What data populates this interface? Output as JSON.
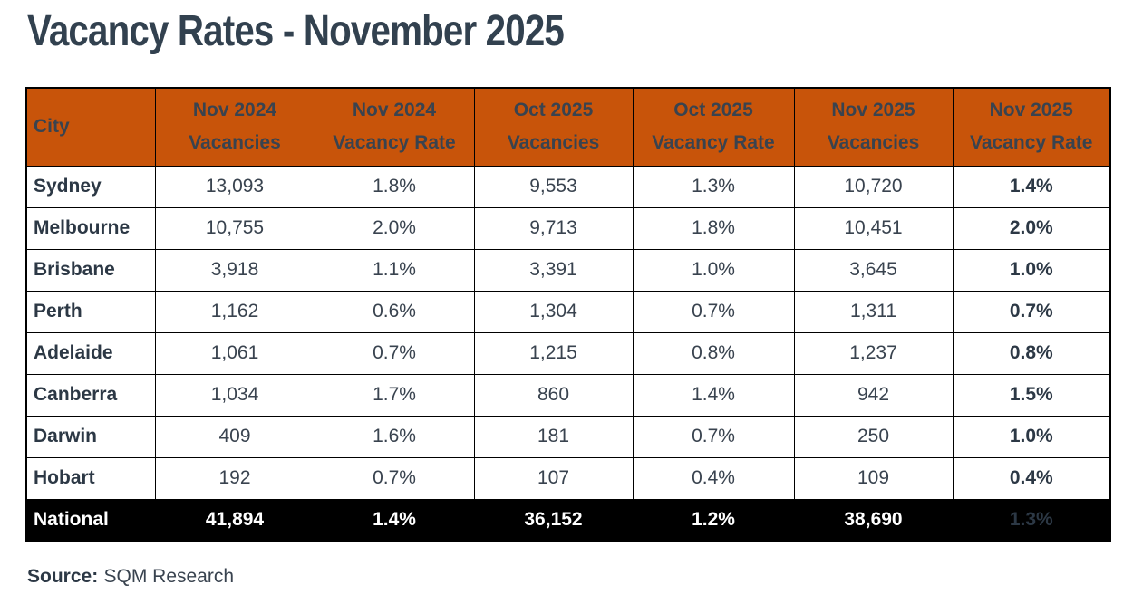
{
  "colors": {
    "header_bg": "#C8540A",
    "header_text": "#FFFFFF",
    "total_row_bg": "#000000",
    "total_row_text": "#FFFFFF",
    "body_text": "#39434F",
    "city_text": "#2C3845",
    "title_text": "#32414F",
    "border": "#000000"
  },
  "page": {
    "title": "Vacancy Rates - November 2025",
    "source_label": "Source:",
    "source_value": "SQM Research"
  },
  "table": {
    "columns": [
      {
        "line1": "City",
        "line2": ""
      },
      {
        "line1": "Nov 2024",
        "line2": "Vacancies"
      },
      {
        "line1": "Nov 2024",
        "line2": "Vacancy Rate"
      },
      {
        "line1": "Oct 2025",
        "line2": "Vacancies"
      },
      {
        "line1": "Oct 2025",
        "line2": "Vacancy Rate"
      },
      {
        "line1": "Nov 2025",
        "line2": "Vacancies"
      },
      {
        "line1": "Nov 2025",
        "line2": "Vacancy Rate"
      }
    ],
    "rows": [
      {
        "city": "Sydney",
        "values": [
          "13,093",
          "1.8%",
          "9,553",
          "1.3%",
          "10,720",
          "1.4%"
        ],
        "is_total": false
      },
      {
        "city": "Melbourne",
        "values": [
          "10,755",
          "2.0%",
          "9,713",
          "1.8%",
          "10,451",
          "2.0%"
        ],
        "is_total": false
      },
      {
        "city": "Brisbane",
        "values": [
          "3,918",
          "1.1%",
          "3,391",
          "1.0%",
          "3,645",
          "1.0%"
        ],
        "is_total": false
      },
      {
        "city": "Perth",
        "values": [
          "1,162",
          "0.6%",
          "1,304",
          "0.7%",
          "1,311",
          "0.7%"
        ],
        "is_total": false
      },
      {
        "city": "Adelaide",
        "values": [
          "1,061",
          "0.7%",
          "1,215",
          "0.8%",
          "1,237",
          "0.8%"
        ],
        "is_total": false
      },
      {
        "city": "Canberra",
        "values": [
          "1,034",
          "1.7%",
          "860",
          "1.4%",
          "942",
          "1.5%"
        ],
        "is_total": false
      },
      {
        "city": "Darwin",
        "values": [
          "409",
          "1.6%",
          "181",
          "0.7%",
          "250",
          "1.0%"
        ],
        "is_total": false
      },
      {
        "city": "Hobart",
        "values": [
          "192",
          "0.7%",
          "107",
          "0.4%",
          "109",
          "0.4%"
        ],
        "is_total": false
      },
      {
        "city": "National",
        "values": [
          "41,894",
          "1.4%",
          "36,152",
          "1.2%",
          "38,690",
          "1.3%"
        ],
        "is_total": true
      }
    ]
  },
  "chart_data": {
    "type": "table",
    "title": "Vacancy Rates - November 2025",
    "source": "SQM Research",
    "columns": [
      "City",
      "Nov 2024 Vacancies",
      "Nov 2024 Vacancy Rate",
      "Oct 2025 Vacancies",
      "Oct 2025 Vacancy Rate",
      "Nov 2025 Vacancies",
      "Nov 2025 Vacancy Rate"
    ],
    "rows": [
      [
        "Sydney",
        13093,
        "1.8%",
        9553,
        "1.3%",
        10720,
        "1.4%"
      ],
      [
        "Melbourne",
        10755,
        "2.0%",
        9713,
        "1.8%",
        10451,
        "2.0%"
      ],
      [
        "Brisbane",
        3918,
        "1.1%",
        3391,
        "1.0%",
        3645,
        "1.0%"
      ],
      [
        "Perth",
        1162,
        "0.6%",
        1304,
        "0.7%",
        1311,
        "0.7%"
      ],
      [
        "Adelaide",
        1061,
        "0.7%",
        1215,
        "0.8%",
        1237,
        "0.8%"
      ],
      [
        "Canberra",
        1034,
        "1.7%",
        860,
        "1.4%",
        942,
        "1.5%"
      ],
      [
        "Darwin",
        409,
        "1.6%",
        181,
        "0.7%",
        250,
        "1.0%"
      ],
      [
        "Hobart",
        192,
        "0.7%",
        107,
        "0.4%",
        109,
        "0.4%"
      ],
      [
        "National",
        41894,
        "1.4%",
        36152,
        "1.2%",
        38690,
        "1.3%"
      ]
    ]
  }
}
